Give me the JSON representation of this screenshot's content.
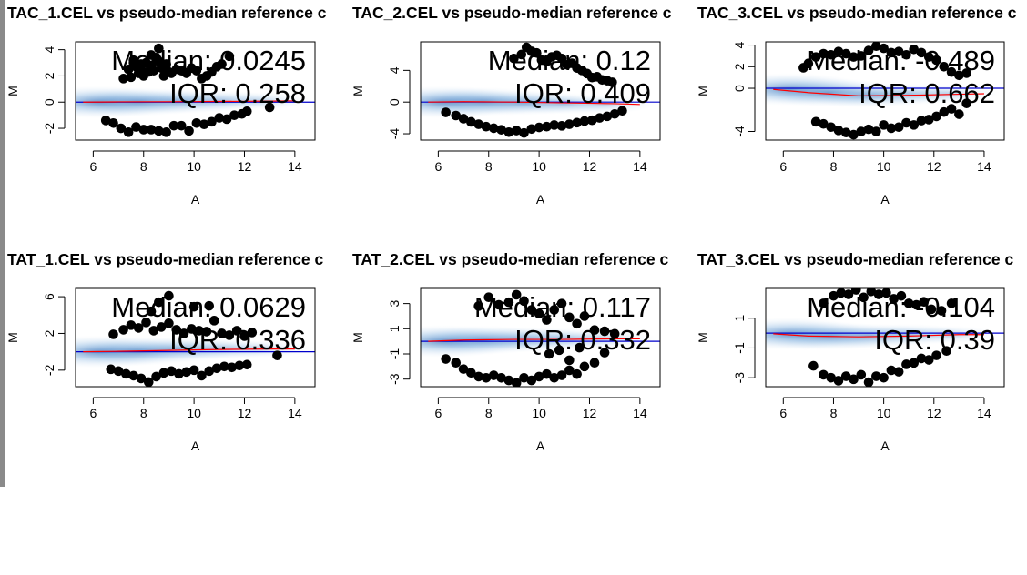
{
  "figure": {
    "colors": {
      "points": "#000000",
      "density_dark": "#1f5fae",
      "density_light": "#dbe9f7",
      "zero_line": "#0000cc",
      "loess_line": "#ff0000"
    }
  },
  "chart_data": [
    {
      "type": "scatter",
      "title": "TAC_1.CEL vs pseudo-median reference c",
      "xlabel": "A",
      "ylabel": "M",
      "xlim": [
        5.3,
        14.8
      ],
      "ylim": [
        -2.9,
        4.6
      ],
      "xticks": [
        "6",
        "8",
        "10",
        "12",
        "14"
      ],
      "yticks": [
        "-2",
        "0",
        "2",
        "4"
      ],
      "annotations": [
        "Median: 0.0245",
        "IQR: 0.258"
      ],
      "points": {
        "x": [
          7.2,
          7.4,
          7.5,
          7.6,
          7.7,
          7.8,
          7.9,
          8.0,
          8.1,
          8.2,
          8.3,
          8.4,
          8.5,
          8.6,
          8.7,
          8.8,
          8.9,
          9.0,
          9.1,
          9.3,
          9.5,
          9.7,
          9.9,
          10.1,
          10.3,
          10.5,
          10.7,
          10.9,
          11.1,
          11.4,
          7.6,
          7.9,
          8.3,
          8.6,
          8.5,
          6.5,
          6.8,
          7.1,
          7.4,
          7.7,
          8.0,
          8.3,
          8.6,
          8.9,
          9.2,
          9.5,
          9.8,
          10.1,
          10.4,
          10.7,
          11.0,
          11.3,
          11.6,
          11.9,
          12.1,
          13.0
        ],
        "y": [
          1.8,
          2.5,
          1.9,
          3.0,
          2.7,
          2.2,
          2.5,
          2.0,
          3.0,
          2.3,
          2.8,
          2.4,
          3.4,
          3.1,
          2.6,
          2.0,
          2.9,
          2.3,
          2.2,
          2.5,
          2.4,
          2.2,
          2.6,
          2.4,
          1.8,
          2.0,
          2.3,
          2.7,
          2.9,
          3.5,
          3.2,
          2.9,
          3.6,
          4.1,
          3.3,
          -1.4,
          -1.6,
          -2.0,
          -2.3,
          -1.9,
          -2.1,
          -2.1,
          -2.2,
          -2.3,
          -1.8,
          -1.8,
          -2.2,
          -1.6,
          -1.7,
          -1.5,
          -1.2,
          -1.3,
          -1.0,
          -0.9,
          -0.7,
          -0.4
        ]
      },
      "loess": {
        "x": [
          5.6,
          7,
          9,
          11,
          13,
          14
        ],
        "y": [
          0.0,
          0.02,
          0.03,
          0.05,
          0.08,
          0.1
        ]
      }
    },
    {
      "type": "scatter",
      "title": "TAC_2.CEL vs pseudo-median reference c",
      "xlabel": "A",
      "ylabel": "M",
      "xlim": [
        5.3,
        14.8
      ],
      "ylim": [
        -4.8,
        7.6
      ],
      "xticks": [
        "6",
        "8",
        "10",
        "12",
        "14"
      ],
      "yticks": [
        "-4",
        "0",
        "4"
      ],
      "annotations": [
        "Median: 0.12",
        "IQR: 0.409"
      ],
      "points": {
        "x": [
          9.0,
          9.3,
          9.5,
          9.7,
          9.9,
          10.1,
          10.3,
          10.5,
          10.7,
          10.9,
          11.1,
          11.3,
          11.5,
          11.7,
          11.9,
          12.1,
          12.3,
          12.5,
          12.7,
          12.9,
          6.3,
          6.7,
          7.0,
          7.3,
          7.6,
          7.9,
          8.2,
          8.5,
          8.8,
          9.1,
          9.4,
          9.7,
          10.0,
          10.3,
          10.6,
          10.9,
          11.2,
          11.5,
          11.8,
          12.1,
          12.4,
          12.7,
          13.0,
          13.3
        ],
        "y": [
          5.5,
          6.0,
          6.9,
          6.4,
          6.2,
          5.3,
          5.1,
          5.7,
          5.9,
          5.5,
          4.7,
          4.9,
          4.3,
          4.0,
          3.6,
          3.1,
          3.2,
          2.8,
          2.7,
          2.5,
          -1.3,
          -1.7,
          -2.1,
          -2.5,
          -2.8,
          -3.1,
          -3.3,
          -3.5,
          -3.8,
          -3.6,
          -3.9,
          -3.4,
          -3.2,
          -3.1,
          -2.9,
          -3.0,
          -2.8,
          -2.6,
          -2.4,
          -2.3,
          -2.0,
          -1.8,
          -1.5,
          -1.1
        ]
      },
      "loess": {
        "x": [
          5.6,
          7,
          9,
          11,
          13,
          14
        ],
        "y": [
          0.0,
          0.05,
          0.0,
          -0.1,
          -0.2,
          -0.3
        ]
      }
    },
    {
      "type": "scatter",
      "title": "TAC_3.CEL vs pseudo-median reference c",
      "xlabel": "A",
      "ylabel": "M",
      "xlim": [
        5.3,
        14.8
      ],
      "ylim": [
        -4.8,
        4.3
      ],
      "xticks": [
        "6",
        "8",
        "10",
        "12",
        "14"
      ],
      "yticks": [
        "-4",
        "0",
        "2",
        "4"
      ],
      "annotations": [
        "Median: -0.489",
        "IQR: 0.662"
      ],
      "points": {
        "x": [
          6.8,
          7.0,
          7.3,
          7.6,
          7.9,
          8.2,
          8.5,
          8.8,
          9.1,
          9.4,
          9.7,
          10.0,
          10.3,
          10.6,
          10.9,
          11.2,
          11.5,
          11.8,
          12.1,
          12.4,
          12.7,
          13.0,
          13.3,
          7.3,
          7.6,
          7.9,
          8.2,
          8.5,
          8.8,
          9.1,
          9.4,
          9.7,
          10.0,
          10.3,
          10.6,
          10.9,
          11.2,
          11.5,
          11.8,
          12.1,
          12.4,
          12.7,
          13.0,
          13.3
        ],
        "y": [
          1.9,
          2.3,
          2.9,
          3.2,
          3.1,
          3.4,
          3.2,
          2.9,
          3.0,
          3.5,
          3.9,
          3.7,
          3.3,
          3.4,
          3.1,
          3.6,
          3.3,
          2.9,
          2.6,
          2.0,
          1.5,
          1.2,
          1.4,
          -3.1,
          -3.3,
          -3.6,
          -3.9,
          -4.1,
          -4.3,
          -4.0,
          -3.8,
          -4.0,
          -3.4,
          -3.7,
          -3.6,
          -3.2,
          -3.4,
          -3.0,
          -2.9,
          -2.6,
          -2.2,
          -1.9,
          -2.4,
          -1.4
        ]
      },
      "loess": {
        "x": [
          5.6,
          7,
          9,
          11,
          13,
          14
        ],
        "y": [
          -0.1,
          -0.4,
          -0.7,
          -0.65,
          -0.55,
          -0.5
        ]
      }
    },
    {
      "type": "scatter",
      "title": "TAT_1.CEL vs pseudo-median reference c",
      "xlabel": "A",
      "ylabel": "M",
      "xlim": [
        5.3,
        14.8
      ],
      "ylim": [
        -3.8,
        6.9
      ],
      "xticks": [
        "6",
        "8",
        "10",
        "12",
        "14"
      ],
      "yticks": [
        "-2",
        "2",
        "6"
      ],
      "annotations": [
        "Median: 0.0629",
        "IQR: 0.336"
      ],
      "points": {
        "x": [
          6.8,
          7.2,
          7.5,
          7.8,
          8.1,
          8.4,
          8.7,
          9.0,
          9.3,
          9.6,
          9.9,
          10.2,
          10.5,
          10.8,
          11.1,
          11.4,
          11.7,
          12.0,
          12.3,
          8.3,
          8.6,
          9.0,
          10.0,
          10.6,
          6.7,
          7.0,
          7.3,
          7.6,
          7.9,
          8.2,
          8.5,
          8.8,
          9.1,
          9.4,
          9.7,
          10.0,
          10.3,
          10.6,
          10.9,
          11.2,
          11.5,
          11.8,
          12.1,
          13.3
        ],
        "y": [
          1.9,
          2.4,
          2.9,
          2.6,
          3.2,
          2.3,
          2.7,
          3.1,
          2.4,
          2.0,
          2.5,
          2.3,
          2.2,
          3.4,
          2.0,
          1.8,
          2.3,
          1.7,
          2.1,
          4.4,
          5.4,
          6.1,
          4.9,
          5.0,
          -1.9,
          -2.1,
          -2.4,
          -2.6,
          -2.9,
          -3.3,
          -2.7,
          -2.3,
          -2.1,
          -2.4,
          -2.2,
          -2.0,
          -2.6,
          -2.1,
          -1.8,
          -1.6,
          -1.7,
          -1.5,
          -1.4,
          -0.4
        ]
      },
      "loess": {
        "x": [
          5.6,
          7,
          9,
          11,
          13,
          14
        ],
        "y": [
          0.0,
          0.05,
          0.15,
          0.25,
          0.3,
          0.3
        ]
      }
    },
    {
      "type": "scatter",
      "title": "TAT_2.CEL vs pseudo-median reference c",
      "xlabel": "A",
      "ylabel": "M",
      "xlim": [
        5.3,
        14.8
      ],
      "ylim": [
        -3.6,
        4.2
      ],
      "xticks": [
        "6",
        "8",
        "10",
        "12",
        "14"
      ],
      "yticks": [
        "-3",
        "-1",
        "1",
        "3"
      ],
      "annotations": [
        "Median: 0.117",
        "IQR: 0.332"
      ],
      "points": {
        "x": [
          7.6,
          8.0,
          8.4,
          8.8,
          9.1,
          9.4,
          9.7,
          10.0,
          10.3,
          10.6,
          10.9,
          11.2,
          11.5,
          11.8,
          12.2,
          12.6,
          13.0,
          6.3,
          6.7,
          7.0,
          7.3,
          7.6,
          7.9,
          8.2,
          8.5,
          8.8,
          9.1,
          9.4,
          9.7,
          10.0,
          10.3,
          10.6,
          10.9,
          11.2,
          11.5,
          11.8,
          12.2,
          12.6,
          10.4,
          10.8,
          11.2,
          11.6
        ],
        "y": [
          2.8,
          3.5,
          2.9,
          3.1,
          3.7,
          3.2,
          2.5,
          2.2,
          1.7,
          2.5,
          3.0,
          1.9,
          1.4,
          2.0,
          0.9,
          0.8,
          0.6,
          -1.4,
          -1.7,
          -2.2,
          -2.5,
          -2.8,
          -2.9,
          -2.7,
          -2.9,
          -3.1,
          -3.3,
          -2.9,
          -3.1,
          -2.8,
          -2.6,
          -2.9,
          -2.7,
          -2.3,
          -2.6,
          -2.0,
          -1.7,
          -0.9,
          -1.0,
          -0.7,
          -1.5,
          -0.5
        ]
      },
      "loess": {
        "x": [
          5.6,
          7,
          9,
          11,
          13,
          14
        ],
        "y": [
          0.0,
          0.1,
          0.15,
          0.15,
          0.2,
          0.2
        ]
      }
    },
    {
      "type": "scatter",
      "title": "TAT_3.CEL vs pseudo-median reference c",
      "xlabel": "A",
      "ylabel": "M",
      "xlim": [
        5.3,
        14.8
      ],
      "ylim": [
        -3.6,
        3.0
      ],
      "xticks": [
        "6",
        "8",
        "10",
        "12",
        "14"
      ],
      "yticks": [
        "-3",
        "-1",
        "1"
      ],
      "annotations": [
        "Median: -0.104",
        "IQR: 0.39"
      ],
      "points": {
        "x": [
          7.6,
          8.0,
          8.3,
          8.6,
          8.9,
          9.2,
          9.5,
          9.8,
          10.1,
          10.4,
          10.7,
          11.0,
          11.3,
          11.6,
          11.9,
          12.3,
          12.7,
          7.2,
          7.6,
          7.9,
          8.2,
          8.5,
          8.8,
          9.1,
          9.4,
          9.7,
          10.0,
          10.3,
          10.6,
          10.9,
          11.2,
          11.5,
          11.8,
          12.1,
          12.5
        ],
        "y": [
          2.0,
          2.5,
          2.7,
          2.6,
          2.9,
          2.4,
          2.8,
          2.6,
          2.7,
          2.3,
          2.5,
          2.0,
          1.9,
          2.1,
          1.6,
          1.5,
          2.0,
          -2.2,
          -2.8,
          -3.0,
          -3.2,
          -2.9,
          -3.1,
          -2.8,
          -3.3,
          -2.9,
          -3.0,
          -2.5,
          -2.6,
          -2.1,
          -2.0,
          -1.7,
          -1.8,
          -1.5,
          -1.2
        ]
      },
      "loess": {
        "x": [
          5.6,
          7,
          9,
          11,
          13,
          14
        ],
        "y": [
          -0.05,
          -0.2,
          -0.25,
          -0.2,
          -0.1,
          -0.1
        ]
      }
    }
  ]
}
